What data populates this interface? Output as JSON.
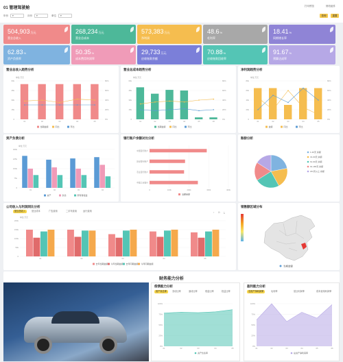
{
  "app": {
    "title": "01 管理驾驶舱",
    "toolbar": [
      "打印预览",
      "修改组件"
    ],
    "top_buttons": [
      "查询",
      "重置"
    ]
  },
  "filters": [
    {
      "label": "年份"
    },
    {
      "label": "月份"
    },
    {
      "label": "单位"
    }
  ],
  "colors": {
    "red": "#f08a8a",
    "green": "#4db899",
    "yellow": "#f5bd4f",
    "gray": "#a8a8a8",
    "purple": "#8f84d6",
    "blue": "#5b9bd5",
    "pink": "#f09bb8",
    "teal": "#54c5b5",
    "orange": "#f5a94c",
    "lavender": "#b6a8e6"
  },
  "kpis": [
    {
      "value": "504,903",
      "unit": "万元",
      "label": "营业总收入",
      "color": "#f08a8a"
    },
    {
      "value": "268,234",
      "unit": "万元",
      "label": "营业总成本",
      "color": "#4db899"
    },
    {
      "value": "573,383",
      "unit": "万元",
      "label": "净利润",
      "color": "#f5bd4f"
    },
    {
      "value": "48.6",
      "unit": "%",
      "label": "毛利率",
      "color": "#a8a8a8"
    },
    {
      "value": "18.41",
      "unit": "%",
      "label": "同期增长率",
      "color": "#8f84d6"
    },
    {
      "value": "62.83",
      "unit": "%",
      "label": "资产负债率",
      "color": "#7fb3e0"
    },
    {
      "value": "50.35",
      "unit": "%",
      "label": "成本费用利润率",
      "color": "#f09bb8"
    },
    {
      "value": "29,733",
      "unit": "万元",
      "label": "应收账款余额",
      "color": "#7b7fd9"
    },
    {
      "value": "70.88",
      "unit": "%",
      "label": "应收账款回收率",
      "color": "#54c5b5"
    },
    {
      "value": "91.67",
      "unit": "%",
      "label": "预算达成率",
      "color": "#b6a8e6"
    }
  ],
  "panels": {
    "p1": {
      "title": "营业总收入趋势分析",
      "unit": "单位:万元",
      "legend": [
        "当期金额",
        "同比",
        "环比"
      ]
    },
    "p2": {
      "title": "营业总成本趋势分析",
      "unit": "单位:万元",
      "legend": [
        "当期金额",
        "同比",
        "环比"
      ]
    },
    "p3": {
      "title": "净利润趋势分析",
      "unit": "单位:万元",
      "legend": [
        "金额",
        "同比",
        "环比"
      ]
    },
    "p4": {
      "title": "资产负债分析",
      "unit": "单位:万元",
      "legend": [
        "资产",
        "负债",
        "所有者权益"
      ]
    },
    "p5": {
      "title": "银行账户余额对比分析",
      "legend": [
        "当期金额"
      ]
    },
    "p6": {
      "title": "账龄分析",
      "legend": [
        "1-30天 余额",
        "31-60天 余额",
        "61-90天 余额",
        "91-180天 余额",
        "181天以上 余额"
      ]
    },
    "p7": {
      "title": "公司收入与利润同比分析",
      "unit": "单位:万元",
      "tabs": [
        "营业总收入",
        "营业成本",
        "广告费用",
        "二手车费用",
        "运行费用"
      ],
      "legend": [
        "去年当期金额",
        "今年当期金额",
        "去年同期金额",
        "今年同期金额"
      ]
    },
    "p8": {
      "title": "销售额区域分布",
      "legend": [
        "当期金额"
      ]
    },
    "fin": {
      "title": "财务能力分析"
    },
    "p9": {
      "title": "偿债能力分析",
      "tabs": [
        "资产负债率",
        "流动比率",
        "速动比率",
        "现金比率",
        "权益比率"
      ]
    },
    "p10": {
      "title": "盈利能力分析",
      "tabs": [
        "总资产净利润率",
        "毛利率",
        "营业利润率",
        "成本费用利润率"
      ]
    }
  },
  "chart_data": [
    {
      "type": "bar",
      "title": "营业总收入趋势分析",
      "categories": [
        "01",
        "02",
        "03",
        "04",
        "05"
      ],
      "series": [
        {
          "name": "当期金额",
          "values": [
            55000,
            55000,
            55000,
            55000,
            55000
          ]
        },
        {
          "name": "同比",
          "type": "line",
          "values": [
            38,
            40,
            35,
            42,
            40
          ]
        },
        {
          "name": "环比",
          "type": "line",
          "values": [
            30,
            30,
            30,
            30,
            30
          ]
        }
      ],
      "ylim": [
        0,
        60000
      ]
    },
    {
      "type": "bar",
      "title": "营业总成本趋势分析",
      "categories": [
        "01",
        "02",
        "03",
        "04",
        "05",
        "06"
      ],
      "series": [
        {
          "name": "当期金额",
          "values": [
            50000,
            40000,
            46000,
            45000,
            3000,
            3000
          ]
        },
        {
          "name": "同比",
          "type": "line",
          "values": [
            32,
            36,
            38,
            36,
            40,
            42
          ]
        },
        {
          "name": "环比",
          "type": "line",
          "values": [
            20,
            18,
            20,
            22,
            18,
            20
          ]
        }
      ],
      "ylim": [
        0,
        60000
      ]
    },
    {
      "type": "bar",
      "title": "净利润趋势分析",
      "categories": [
        "01",
        "02",
        "03",
        "04",
        "05"
      ],
      "series": [
        {
          "name": "金额",
          "values": [
            65000,
            65000,
            30000,
            65000,
            65000
          ]
        },
        {
          "name": "同比",
          "type": "line",
          "values": [
            45,
            20,
            60,
            25,
            10
          ]
        },
        {
          "name": "环比",
          "type": "line",
          "values": [
            20,
            50,
            35,
            65,
            40
          ]
        }
      ],
      "ylim": [
        0,
        80000
      ]
    },
    {
      "type": "bar",
      "title": "资产负债分析",
      "categories": [
        "01",
        "02",
        "03",
        "04"
      ],
      "series": [
        {
          "name": "资产",
          "values": [
            250000,
            220000,
            230000,
            240000
          ]
        },
        {
          "name": "负债",
          "values": [
            150000,
            160000,
            150000,
            180000
          ]
        },
        {
          "name": "所有者权益",
          "values": [
            100000,
            100000,
            100000,
            90000
          ]
        }
      ],
      "ylim": [
        0,
        300000
      ]
    },
    {
      "type": "bar",
      "orientation": "horizontal",
      "title": "银行账户余额对比分析",
      "categories": [
        "中国银行账户",
        "建设银行账户",
        "农业银行账户",
        "中国工商银行"
      ],
      "series": [
        {
          "name": "当期金额",
          "values": [
            290000,
            180000,
            175000,
            245000
          ]
        }
      ],
      "xlim": [
        0,
        400000
      ]
    },
    {
      "type": "pie",
      "title": "账龄分析",
      "categories": [
        "1-30天 余额",
        "31-60天 余额",
        "61-90天 余额",
        "91-180天 余额",
        "181天以上 余额"
      ],
      "values": [
        22,
        20,
        24,
        18,
        16
      ]
    },
    {
      "type": "bar",
      "title": "公司收入与利润同比分析",
      "categories": [
        "01",
        "02",
        "03",
        "04",
        "05"
      ],
      "series": [
        {
          "name": "去年当期金额",
          "values": [
            150000,
            150000,
            125000,
            140000,
            135000
          ]
        },
        {
          "name": "今年当期金额",
          "values": [
            105000,
            110000,
            105000,
            110000,
            105000
          ]
        },
        {
          "name": "去年同期金额",
          "values": [
            140000,
            145000,
            145000,
            145000,
            140000
          ]
        },
        {
          "name": "今年同期金额",
          "values": [
            150000,
            145000,
            150000,
            150000,
            150000
          ]
        }
      ],
      "ylim": [
        0,
        200000
      ]
    },
    {
      "type": "area",
      "title": "偿债能力分析",
      "categories": [
        "01",
        "02",
        "03",
        "04",
        "05"
      ],
      "series": [
        {
          "name": "资产负债率",
          "values": [
            78,
            80,
            79,
            81,
            86
          ]
        }
      ],
      "ylim": [
        0,
        100
      ]
    },
    {
      "type": "area",
      "title": "盈利能力分析",
      "categories": [
        "01",
        "02",
        "03",
        "04",
        "05",
        "06"
      ],
      "series": [
        {
          "name": "总资产净利润率",
          "values": [
            62,
            100,
            58,
            80,
            66,
            98
          ]
        }
      ],
      "ylim": [
        0,
        100
      ]
    }
  ]
}
